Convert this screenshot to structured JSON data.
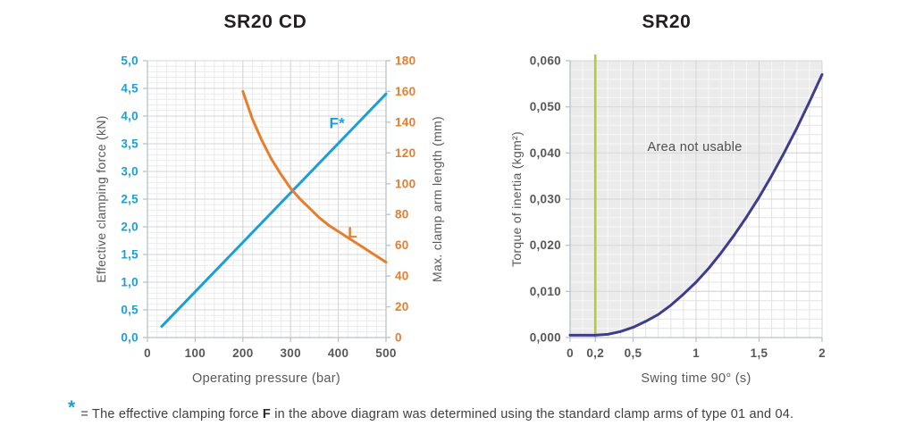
{
  "colors": {
    "blue": "#1b9fd8",
    "orange": "#e87d2b",
    "navy": "#3f3c90",
    "green": "#b5c93c",
    "title": "#231f20",
    "axis_text": "#58585a",
    "grid_minor": "#ebebeb",
    "grid_minor_right_chart": "#e4e4e4",
    "grid_minor_in_fill": "#f8f8f8",
    "grid_major": "#d5d5d5",
    "axis_line": "#b9c2c6",
    "not_usable_fill": "#ebebeb",
    "annotation_text": "#4e4e50"
  },
  "footnote": {
    "marker": "*",
    "text_pre": "= The effective clamping force ",
    "bold_term": "F",
    "text_post": " in the above diagram was determined using the standard clamp arms of type 01 and 04."
  },
  "chart_data": [
    {
      "type": "line",
      "title": "SR20 CD",
      "xlabel": "Operating pressure (bar)",
      "ylabel_left": "Effective clamping force (kN)",
      "ylabel_right": "Max. clamp arm length (mm)",
      "grid": true,
      "x": {
        "min": 0,
        "max": 500,
        "minor_step": 20,
        "ticks": [
          {
            "v": 0,
            "label": "0"
          },
          {
            "v": 100,
            "label": "100"
          },
          {
            "v": 200,
            "label": "200"
          },
          {
            "v": 300,
            "label": "300"
          },
          {
            "v": 400,
            "label": "400"
          },
          {
            "v": 500,
            "label": "500"
          }
        ]
      },
      "y_left": {
        "min": 0,
        "max": 5,
        "minor_step": 0.1,
        "color": "#1b9fd8",
        "ticks": [
          {
            "v": 0,
            "label": "0,0"
          },
          {
            "v": 0.5,
            "label": "0,5"
          },
          {
            "v": 1,
            "label": "1,0"
          },
          {
            "v": 1.5,
            "label": "1,5"
          },
          {
            "v": 2,
            "label": "2,0"
          },
          {
            "v": 2.5,
            "label": "2,5"
          },
          {
            "v": 3,
            "label": "3,0"
          },
          {
            "v": 3.5,
            "label": "3,5"
          },
          {
            "v": 4,
            "label": "4,0"
          },
          {
            "v": 4.5,
            "label": "4,5"
          },
          {
            "v": 5,
            "label": "5,0"
          }
        ]
      },
      "y_right": {
        "min": 0,
        "max": 180,
        "color": "#e87d2b",
        "ticks": [
          {
            "v": 0,
            "label": "0"
          },
          {
            "v": 20,
            "label": "20"
          },
          {
            "v": 40,
            "label": "40"
          },
          {
            "v": 60,
            "label": "60"
          },
          {
            "v": 80,
            "label": "80"
          },
          {
            "v": 100,
            "label": "100"
          },
          {
            "v": 120,
            "label": "120"
          },
          {
            "v": 140,
            "label": "140"
          },
          {
            "v": 160,
            "label": "160"
          },
          {
            "v": 180,
            "label": "180"
          }
        ]
      },
      "series": [
        {
          "name": "F",
          "label": "F*",
          "axis": "left",
          "color": "#1b9fd8",
          "label_at": [
            414,
            3.78
          ],
          "label_anchor": "end",
          "points": [
            [
              30,
              0.2
            ],
            [
              500,
              4.4
            ]
          ]
        },
        {
          "name": "L",
          "label": "L",
          "axis": "right",
          "color": "#e87d2b",
          "label_at": [
            430,
            65
          ],
          "label_anchor": "middle",
          "points": [
            [
              200,
              160
            ],
            [
              220,
              142
            ],
            [
              240,
              128
            ],
            [
              260,
              116
            ],
            [
              280,
              106
            ],
            [
              300,
              97
            ],
            [
              320,
              90
            ],
            [
              340,
              84
            ],
            [
              360,
              78
            ],
            [
              380,
              73
            ],
            [
              400,
              69
            ],
            [
              425,
              64
            ],
            [
              450,
              59
            ],
            [
              475,
              54
            ],
            [
              500,
              49
            ]
          ]
        }
      ]
    },
    {
      "type": "line",
      "title": "SR20",
      "xlabel": "Swing time 90° (s)",
      "ylabel": "Torque of inertia (kgm²)",
      "grid": true,
      "x": {
        "min": 0,
        "max": 2,
        "minor_step": 0.1,
        "ticks": [
          {
            "v": 0,
            "label": "0",
            "grid": false
          },
          {
            "v": 0.2,
            "label": "0,2",
            "grid": false
          },
          {
            "v": 0.5,
            "label": "0,5",
            "grid": true
          },
          {
            "v": 1,
            "label": "1",
            "grid": true
          },
          {
            "v": 1.5,
            "label": "1,5",
            "grid": true
          },
          {
            "v": 2,
            "label": "2",
            "grid": true
          }
        ]
      },
      "y": {
        "min": 0,
        "max": 0.06,
        "minor_step": 0.002,
        "ticks": [
          {
            "v": 0,
            "label": "0,000"
          },
          {
            "v": 0.01,
            "label": "0,010"
          },
          {
            "v": 0.02,
            "label": "0,020"
          },
          {
            "v": 0.03,
            "label": "0,030"
          },
          {
            "v": 0.04,
            "label": "0,040"
          },
          {
            "v": 0.05,
            "label": "0,050"
          },
          {
            "v": 0.06,
            "label": "0,060"
          }
        ]
      },
      "limit_line": {
        "x": 0.2,
        "color": "#b5c93c"
      },
      "not_usable_region": {
        "label": "Area not usable",
        "label_at": [
          0.99,
          0.0405
        ],
        "fill": "#ebebeb",
        "side": "above-curve"
      },
      "series": [
        {
          "name": "inertia-limit-curve",
          "color": "#3f3c90",
          "points": [
            [
              0,
              0.0005
            ],
            [
              0.2,
              0.0005
            ],
            [
              0.3,
              0.0007
            ],
            [
              0.4,
              0.0013
            ],
            [
              0.5,
              0.0022
            ],
            [
              0.6,
              0.0035
            ],
            [
              0.7,
              0.005
            ],
            [
              0.8,
              0.007
            ],
            [
              0.9,
              0.0094
            ],
            [
              1.0,
              0.012
            ],
            [
              1.1,
              0.015
            ],
            [
              1.2,
              0.0184
            ],
            [
              1.3,
              0.0221
            ],
            [
              1.4,
              0.0261
            ],
            [
              1.5,
              0.0304
            ],
            [
              1.6,
              0.0351
            ],
            [
              1.7,
              0.0401
            ],
            [
              1.8,
              0.0454
            ],
            [
              1.9,
              0.0511
            ],
            [
              2.0,
              0.057
            ]
          ]
        }
      ]
    }
  ]
}
